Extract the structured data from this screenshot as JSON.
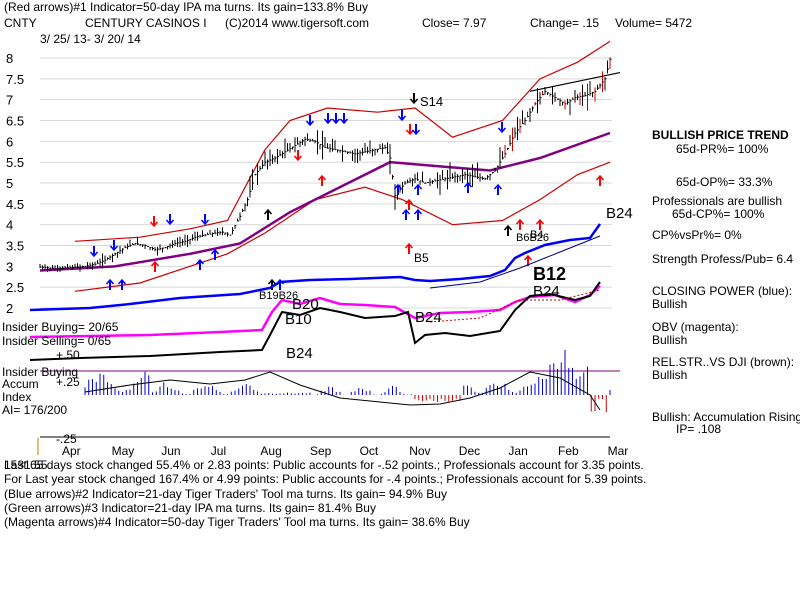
{
  "header": {
    "line1": "(Red arrows)#1 Indicator=50-day IPA ma turns. Its gain=133.8% Buy",
    "symbol": "CNTY",
    "company": "CENTURY CASINOS I",
    "site": "(C)2014 www.tigersoft.com",
    "close": "Close=  7.97",
    "change": "Change= .15",
    "volume": "Volume= 5472",
    "daterange": "3/ 25/ 13- 3/ 20/ 14"
  },
  "right_panel": {
    "trend_title": "BULLISH PRICE TREND",
    "pr": "65d-PR%= 100%",
    "op": "65d-OP%= 33.3%",
    "prof": "Professionals are bullish",
    "cp": "65d-CP%= 100%",
    "cpvspr": "CP%vsPr%=  0%",
    "strength": "Strength Profess/Pub= 6.4",
    "cp_label": "CLOSING POWER (blue):",
    "cp_val": "Bullish",
    "obv_label": "OBV (magenta):",
    "obv_val": "Bullish",
    "rel_label": "REL.STR..VS DJI (brown):",
    "rel_val": "Bullish",
    "acc_label": "Bullish: Accumulation Rising",
    "ip": "IP=  .108"
  },
  "left_labels": {
    "insider_buying": "Insider Buying= 20/65",
    "insider_selling": "Insider Selling= 0/65",
    "plus50": "+.50",
    "insider_buying2": "Insider Buying",
    "accum": "Accum",
    "plus25": "+.25",
    "index": "Index",
    "ai": "AI= 176/200",
    "minus25": "-.25"
  },
  "footer": {
    "line1": "Last 65 days stock changed  55.4% or  2.83 points:  Public accounts for -.52 points.;  Professionals account for  3.35 points.",
    "overlay": "1531.55",
    "line2": "For Last year stock changed  167.4% or  4.99 points:  Public accounts for -.4 points.;  Professionals account for  5.39 points.",
    "line3": "(Blue arrows)#2 Indicator=21-day Tiger Traders' Tool ma turns. Its gain= 94.9% Buy",
    "line4": "(Green arrows)#3 Indicator=21-day IPA ma turns. Its gain= 81.4% Buy",
    "line5": "(Magenta arrows)#4 Indicator=50-day Tiger Traders' Tool ma turns. Its gain= 38.6% Buy"
  },
  "annotations": {
    "s14": "S14",
    "b5": "B5",
    "b24_top": "B24",
    "b12": "B12",
    "b24_mid": "B24",
    "b20": "B20",
    "b10": "B10",
    "b24_obv": "B24",
    "b24_low": "B24",
    "b19b26": "B19B26",
    "b4": "B4",
    "b6b26": "B6B26"
  },
  "chart_data": {
    "type": "line",
    "colors": {
      "price": "#000000",
      "bands": "#cc0000",
      "ma": "#800080",
      "closing_power": "#0000ff",
      "obv": "#ff00ff",
      "relstr": "#000000",
      "accum": "#0000cc",
      "accum_neg": "#cc0000",
      "red_arrow": "#ff0000",
      "blue_arrow": "#0000ff"
    },
    "months": [
      "Apr",
      "May",
      "Jun",
      "Jul",
      "Aug",
      "Sep",
      "Oct",
      "Nov",
      "Dec",
      "Jan",
      "Feb",
      "Mar"
    ],
    "yticks": [
      "8",
      "7.5",
      "7",
      "6.5",
      "6",
      "5.5",
      "5",
      "4.5",
      "4",
      "3.5",
      "3",
      "2.5",
      "2"
    ],
    "ylim": [
      2,
      8
    ],
    "price": [
      [
        0,
        2.98
      ],
      [
        6,
        2.95
      ],
      [
        12,
        2.97
      ],
      [
        18,
        3.0
      ],
      [
        22,
        3.05
      ],
      [
        26,
        3.15
      ],
      [
        30,
        3.3
      ],
      [
        34,
        3.45
      ],
      [
        38,
        3.55
      ],
      [
        42,
        3.5
      ],
      [
        46,
        3.4
      ],
      [
        50,
        3.45
      ],
      [
        54,
        3.55
      ],
      [
        58,
        3.6
      ],
      [
        62,
        3.7
      ],
      [
        66,
        3.75
      ],
      [
        70,
        3.8
      ],
      [
        73,
        3.82
      ],
      [
        76,
        3.75
      ],
      [
        80,
        4.2
      ],
      [
        83,
        4.6
      ],
      [
        86,
        5.2
      ],
      [
        90,
        5.5
      ],
      [
        94,
        5.6
      ],
      [
        98,
        5.75
      ],
      [
        102,
        5.9
      ],
      [
        106,
        6.05
      ],
      [
        110,
        6.0
      ],
      [
        114,
        5.85
      ],
      [
        118,
        5.8
      ],
      [
        122,
        5.75
      ],
      [
        126,
        5.7
      ],
      [
        130,
        5.75
      ],
      [
        134,
        5.8
      ],
      [
        138,
        5.85
      ],
      [
        140,
        5.6
      ],
      [
        142,
        4.7
      ],
      [
        146,
        5.0
      ],
      [
        150,
        5.1
      ],
      [
        154,
        5.0
      ],
      [
        158,
        5.05
      ],
      [
        162,
        5.1
      ],
      [
        166,
        5.15
      ],
      [
        170,
        5.2
      ],
      [
        174,
        5.15
      ],
      [
        178,
        5.1
      ],
      [
        182,
        5.3
      ],
      [
        186,
        5.7
      ],
      [
        190,
        6.2
      ],
      [
        194,
        6.5
      ],
      [
        198,
        6.9
      ],
      [
        202,
        7.2
      ],
      [
        206,
        7.05
      ],
      [
        210,
        6.9
      ],
      [
        214,
        7.05
      ],
      [
        218,
        7.1
      ],
      [
        222,
        7.2
      ],
      [
        226,
        7.5
      ],
      [
        228,
        7.97
      ]
    ],
    "ma": [
      [
        0,
        2.9
      ],
      [
        30,
        3.0
      ],
      [
        60,
        3.3
      ],
      [
        80,
        3.55
      ],
      [
        100,
        4.3
      ],
      [
        120,
        4.9
      ],
      [
        140,
        5.5
      ],
      [
        160,
        5.4
      ],
      [
        180,
        5.3
      ],
      [
        200,
        5.6
      ],
      [
        228,
        6.2
      ]
    ],
    "upper_band": [
      [
        14,
        3.6
      ],
      [
        40,
        3.7
      ],
      [
        60,
        3.9
      ],
      [
        75,
        4.1
      ],
      [
        90,
        5.8
      ],
      [
        100,
        6.5
      ],
      [
        115,
        6.8
      ],
      [
        135,
        6.7
      ],
      [
        150,
        6.8
      ],
      [
        165,
        6.1
      ],
      [
        185,
        6.5
      ],
      [
        200,
        7.5
      ],
      [
        215,
        7.9
      ],
      [
        228,
        8.4
      ]
    ],
    "lower_band": [
      [
        14,
        2.4
      ],
      [
        40,
        2.6
      ],
      [
        60,
        3.0
      ],
      [
        75,
        3.3
      ],
      [
        90,
        3.8
      ],
      [
        110,
        4.6
      ],
      [
        130,
        4.9
      ],
      [
        145,
        4.6
      ],
      [
        165,
        4.0
      ],
      [
        185,
        4.1
      ],
      [
        200,
        4.6
      ],
      [
        215,
        5.2
      ],
      [
        228,
        5.5
      ]
    ],
    "trendline": [
      [
        196,
        7.2
      ],
      [
        232,
        7.65
      ]
    ]
  }
}
